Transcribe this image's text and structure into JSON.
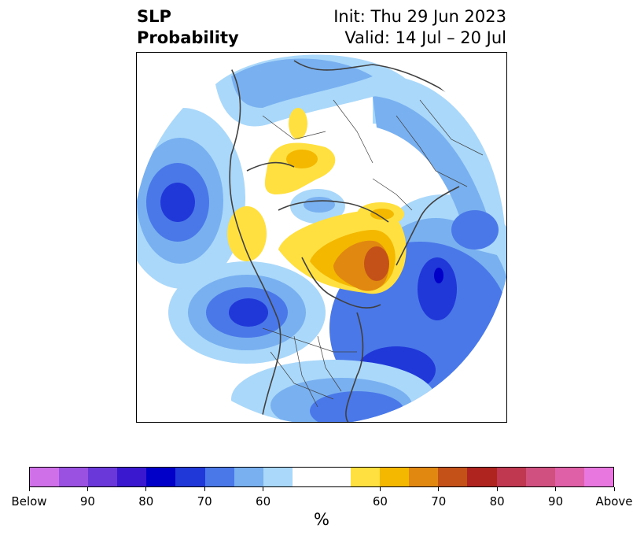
{
  "title": {
    "left_line1": "SLP",
    "left_line2": "Probability",
    "right_line1": "Init: Thu 29 Jun 2023",
    "right_line2": "Valid: 14 Jul – 20 Jul"
  },
  "colorbar": {
    "unit": "%",
    "colors": [
      "#d070e8",
      "#9a50e0",
      "#6a38d8",
      "#3a18d0",
      "#0000c8",
      "#2038d8",
      "#4a78e8",
      "#78b0f0",
      "#aad8fa",
      "#ffffff",
      "#ffffff",
      "#ffe040",
      "#f4b800",
      "#e08810",
      "#c45218",
      "#b02420",
      "#c03850",
      "#d05080",
      "#e060a8",
      "#e878e0"
    ],
    "ticks": [
      {
        "label": "Below",
        "index": 0
      },
      {
        "label": "90",
        "index": 2
      },
      {
        "label": "80",
        "index": 4
      },
      {
        "label": "70",
        "index": 6
      },
      {
        "label": "60",
        "index": 8
      },
      {
        "label": "60",
        "index": 12
      },
      {
        "label": "70",
        "index": 14
      },
      {
        "label": "80",
        "index": 16
      },
      {
        "label": "90",
        "index": 18
      },
      {
        "label": "Above",
        "index": 20
      }
    ]
  },
  "map": {
    "projection": "polar-stereographic-north",
    "coastline_color": "#404040",
    "anomaly_regions": [
      {
        "name": "north-pacific-low",
        "category": "below",
        "peak_level": "80"
      },
      {
        "name": "northeast-pacific-low",
        "category": "below",
        "peak_level": "80"
      },
      {
        "name": "north-atlantic-low",
        "category": "below",
        "peak_level": "80"
      },
      {
        "name": "western-atlantic-low",
        "category": "below",
        "peak_level": "80"
      },
      {
        "name": "greenland-high",
        "category": "above",
        "peak_level": "80"
      },
      {
        "name": "siberia-high",
        "category": "above",
        "peak_level": "60"
      },
      {
        "name": "alaska-high",
        "category": "above",
        "peak_level": "60"
      },
      {
        "name": "scandinavia-high",
        "category": "above",
        "peak_level": "60"
      }
    ]
  }
}
